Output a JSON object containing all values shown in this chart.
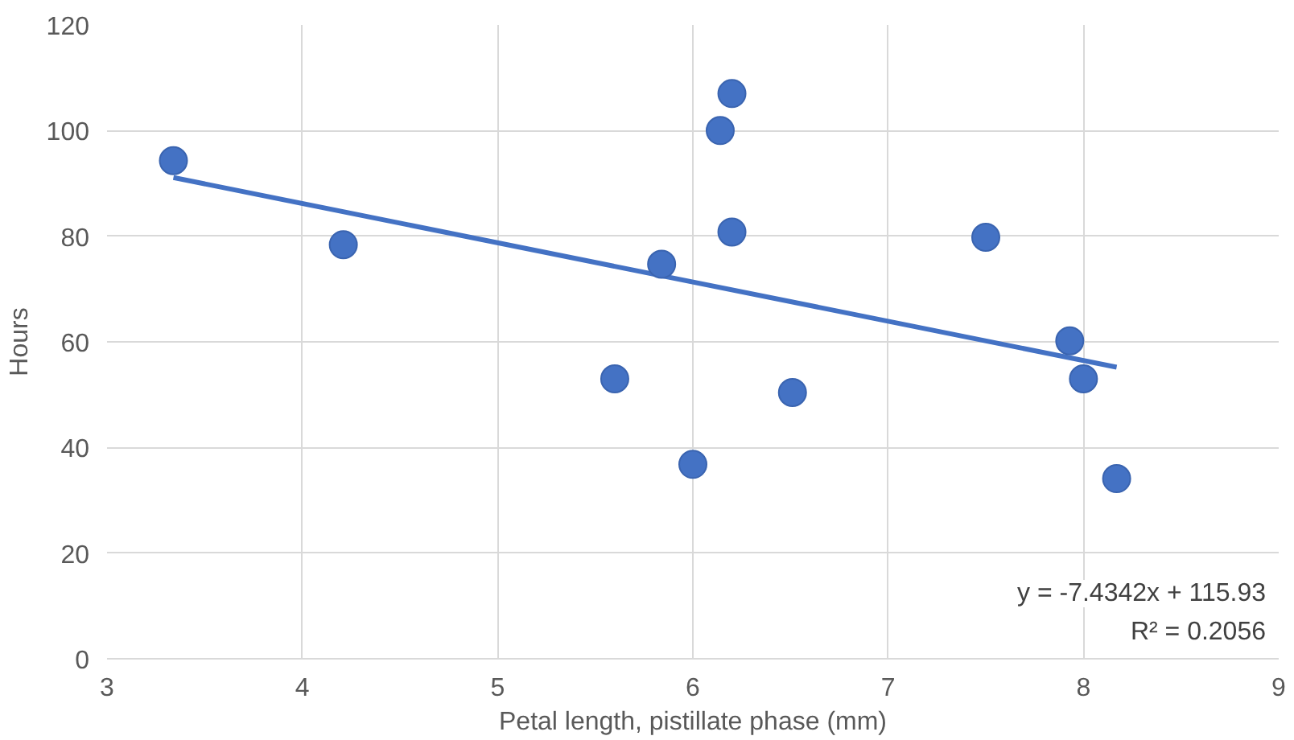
{
  "chart_data": {
    "type": "scatter",
    "xlabel": "Petal length, pistillate phase (mm)",
    "ylabel": "Hours",
    "xlim": [
      3,
      9
    ],
    "xticks": [
      3,
      4,
      5,
      6,
      7,
      8,
      9
    ],
    "ylim": [
      0,
      120
    ],
    "yticks": [
      0,
      20,
      40,
      60,
      80,
      100,
      120
    ],
    "grid": true,
    "series": [
      {
        "marker": "circle",
        "color": "#4472c4",
        "x": [
          3.34,
          4.21,
          5.6,
          5.84,
          6.0,
          6.14,
          6.2,
          6.2,
          6.51,
          7.5,
          7.93,
          8.0,
          8.17
        ],
        "values": [
          94.3,
          78.4,
          53,
          74.7,
          36.8,
          100,
          107,
          80.8,
          50.4,
          79.8,
          60.2,
          53,
          34.1
        ]
      },
      {
        "type": "line",
        "color": "#4472c4",
        "x": [
          3.34,
          8.17
        ],
        "values": [
          91.1,
          55.2
        ]
      }
    ],
    "annotations": [
      "y = -7.4342x + 115.93",
      "R² = 0.2056"
    ]
  }
}
